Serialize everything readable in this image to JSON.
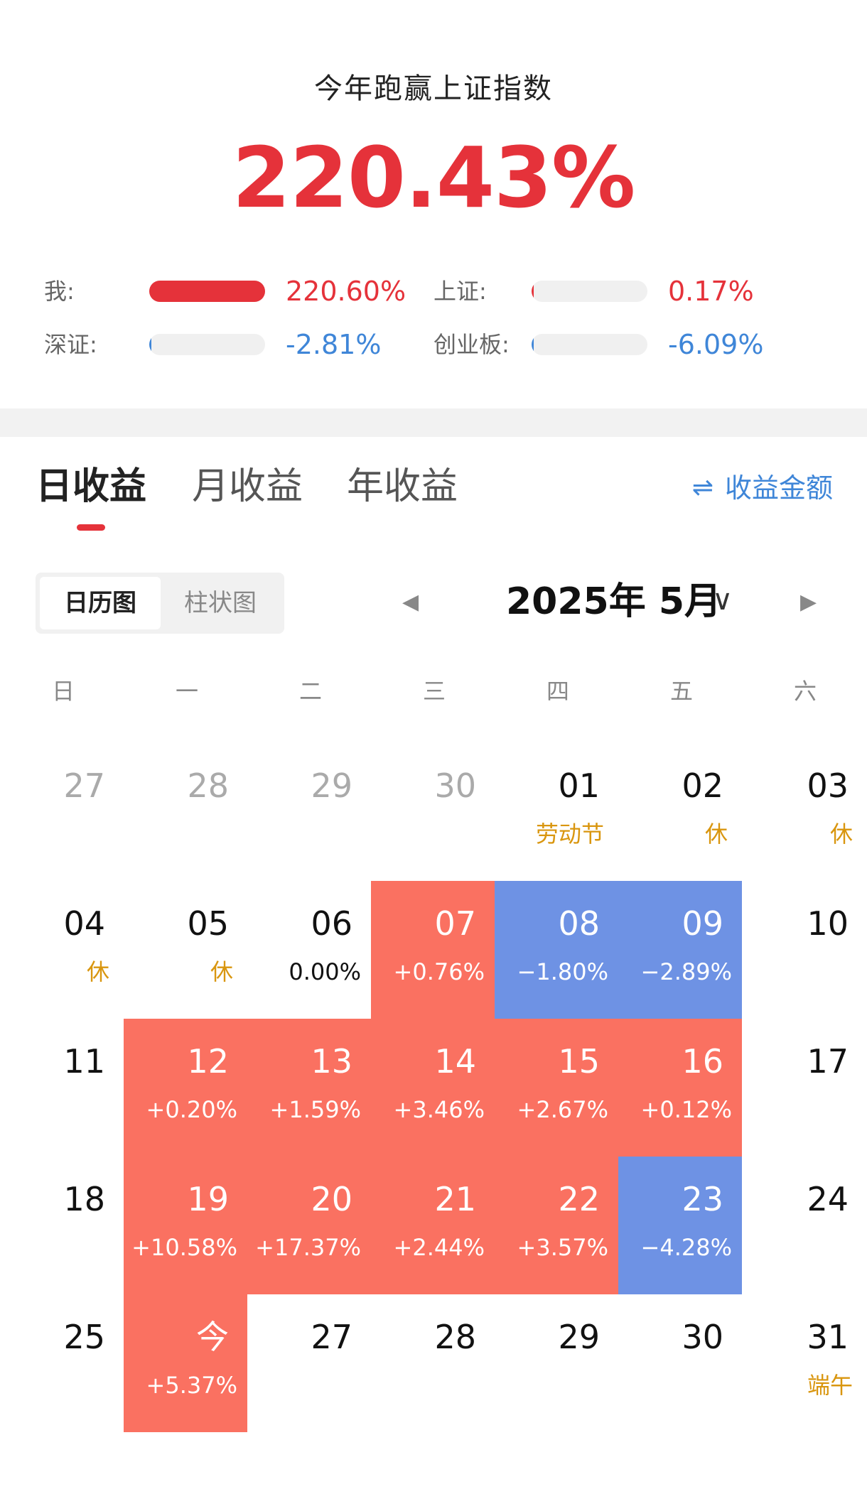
{
  "header": {
    "subtitle": "今年跑赢上证指数",
    "big_value": "220.43%"
  },
  "comparison": [
    {
      "label": "我:",
      "value": "220.60%",
      "level": 1.0,
      "sign": "pos",
      "color": "#e5323a"
    },
    {
      "label": "上证:",
      "value": "0.17%",
      "level": 0.01,
      "sign": "pos",
      "color": "#e5323a"
    },
    {
      "label": "深证:",
      "value": "-2.81%",
      "level": 0.01,
      "sign": "neg",
      "color": "#3f86d8"
    },
    {
      "label": "创业板:",
      "value": "-6.09%",
      "level": 0.01,
      "sign": "neg",
      "color": "#3f86d8"
    }
  ],
  "tabs": [
    {
      "label": "日收益",
      "active": true
    },
    {
      "label": "月收益",
      "active": false
    },
    {
      "label": "年收益",
      "active": false
    }
  ],
  "amount_toggle": {
    "icon": "swap-icon",
    "label": "收益金额"
  },
  "view_switch": {
    "calendar": "日历图",
    "bar": "柱状图"
  },
  "month": {
    "title": "2025年 5月",
    "prev_icon": "◀",
    "next_icon": "▶",
    "chevron": "∨"
  },
  "weekdays": [
    "日",
    "一",
    "二",
    "三",
    "四",
    "五",
    "六"
  ],
  "colors": {
    "up": "#fa7161",
    "down": "#6e92e4",
    "holiday": "#d9960f",
    "accent": "#e5323a",
    "blue": "#3f86d8"
  },
  "calendar": [
    [
      {
        "day": "27",
        "sub": "",
        "kind": "gray"
      },
      {
        "day": "28",
        "sub": "",
        "kind": "gray"
      },
      {
        "day": "29",
        "sub": "",
        "kind": "gray"
      },
      {
        "day": "30",
        "sub": "",
        "kind": "gray"
      },
      {
        "day": "01",
        "sub": "劳动节",
        "kind": "holiday"
      },
      {
        "day": "02",
        "sub": "休",
        "kind": "holiday"
      },
      {
        "day": "03",
        "sub": "休",
        "kind": "holiday"
      }
    ],
    [
      {
        "day": "04",
        "sub": "休",
        "kind": "holiday"
      },
      {
        "day": "05",
        "sub": "休",
        "kind": "holiday"
      },
      {
        "day": "06",
        "sub": "0.00%",
        "kind": "flat"
      },
      {
        "day": "07",
        "sub": "+0.76%",
        "kind": "up"
      },
      {
        "day": "08",
        "sub": "−1.80%",
        "kind": "down"
      },
      {
        "day": "09",
        "sub": "−2.89%",
        "kind": "down"
      },
      {
        "day": "10",
        "sub": "",
        "kind": "plain"
      }
    ],
    [
      {
        "day": "11",
        "sub": "",
        "kind": "plain"
      },
      {
        "day": "12",
        "sub": "+0.20%",
        "kind": "up"
      },
      {
        "day": "13",
        "sub": "+1.59%",
        "kind": "up"
      },
      {
        "day": "14",
        "sub": "+3.46%",
        "kind": "up"
      },
      {
        "day": "15",
        "sub": "+2.67%",
        "kind": "up"
      },
      {
        "day": "16",
        "sub": "+0.12%",
        "kind": "up"
      },
      {
        "day": "17",
        "sub": "",
        "kind": "plain"
      }
    ],
    [
      {
        "day": "18",
        "sub": "",
        "kind": "plain"
      },
      {
        "day": "19",
        "sub": "+10.58%",
        "kind": "up"
      },
      {
        "day": "20",
        "sub": "+17.37%",
        "kind": "up"
      },
      {
        "day": "21",
        "sub": "+2.44%",
        "kind": "up"
      },
      {
        "day": "22",
        "sub": "+3.57%",
        "kind": "up"
      },
      {
        "day": "23",
        "sub": "−4.28%",
        "kind": "down"
      },
      {
        "day": "24",
        "sub": "",
        "kind": "plain"
      }
    ],
    [
      {
        "day": "25",
        "sub": "",
        "kind": "plain"
      },
      {
        "day": "今",
        "sub": "+5.37%",
        "kind": "up"
      },
      {
        "day": "27",
        "sub": "",
        "kind": "plain"
      },
      {
        "day": "28",
        "sub": "",
        "kind": "plain"
      },
      {
        "day": "29",
        "sub": "",
        "kind": "plain"
      },
      {
        "day": "30",
        "sub": "",
        "kind": "plain"
      },
      {
        "day": "31",
        "sub": "端午",
        "kind": "holiday"
      }
    ]
  ]
}
